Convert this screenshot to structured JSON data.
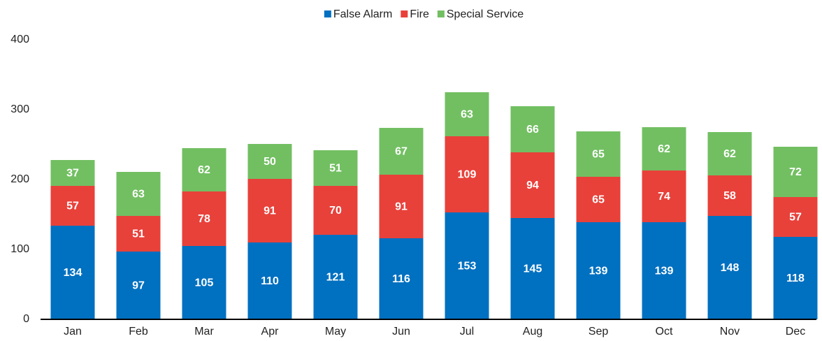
{
  "chart_data": {
    "type": "stacked_bar",
    "categories": [
      "Jan",
      "Feb",
      "Mar",
      "Apr",
      "May",
      "Jun",
      "Jul",
      "Aug",
      "Sep",
      "Oct",
      "Nov",
      "Dec"
    ],
    "series": [
      {
        "name": "False Alarm",
        "color": "#0070c0",
        "values": [
          134,
          97,
          105,
          110,
          121,
          116,
          153,
          145,
          139,
          139,
          148,
          118
        ]
      },
      {
        "name": "Fire",
        "color": "#e8413a",
        "values": [
          57,
          51,
          78,
          91,
          70,
          91,
          109,
          94,
          65,
          74,
          58,
          57
        ]
      },
      {
        "name": "Special Service",
        "color": "#72bf62",
        "values": [
          37,
          63,
          62,
          50,
          51,
          67,
          63,
          66,
          65,
          62,
          62,
          72
        ]
      }
    ],
    "ylim": [
      0,
      400
    ],
    "yticks": [
      0,
      100,
      200,
      300,
      400
    ],
    "grid": false,
    "legend": "top"
  }
}
